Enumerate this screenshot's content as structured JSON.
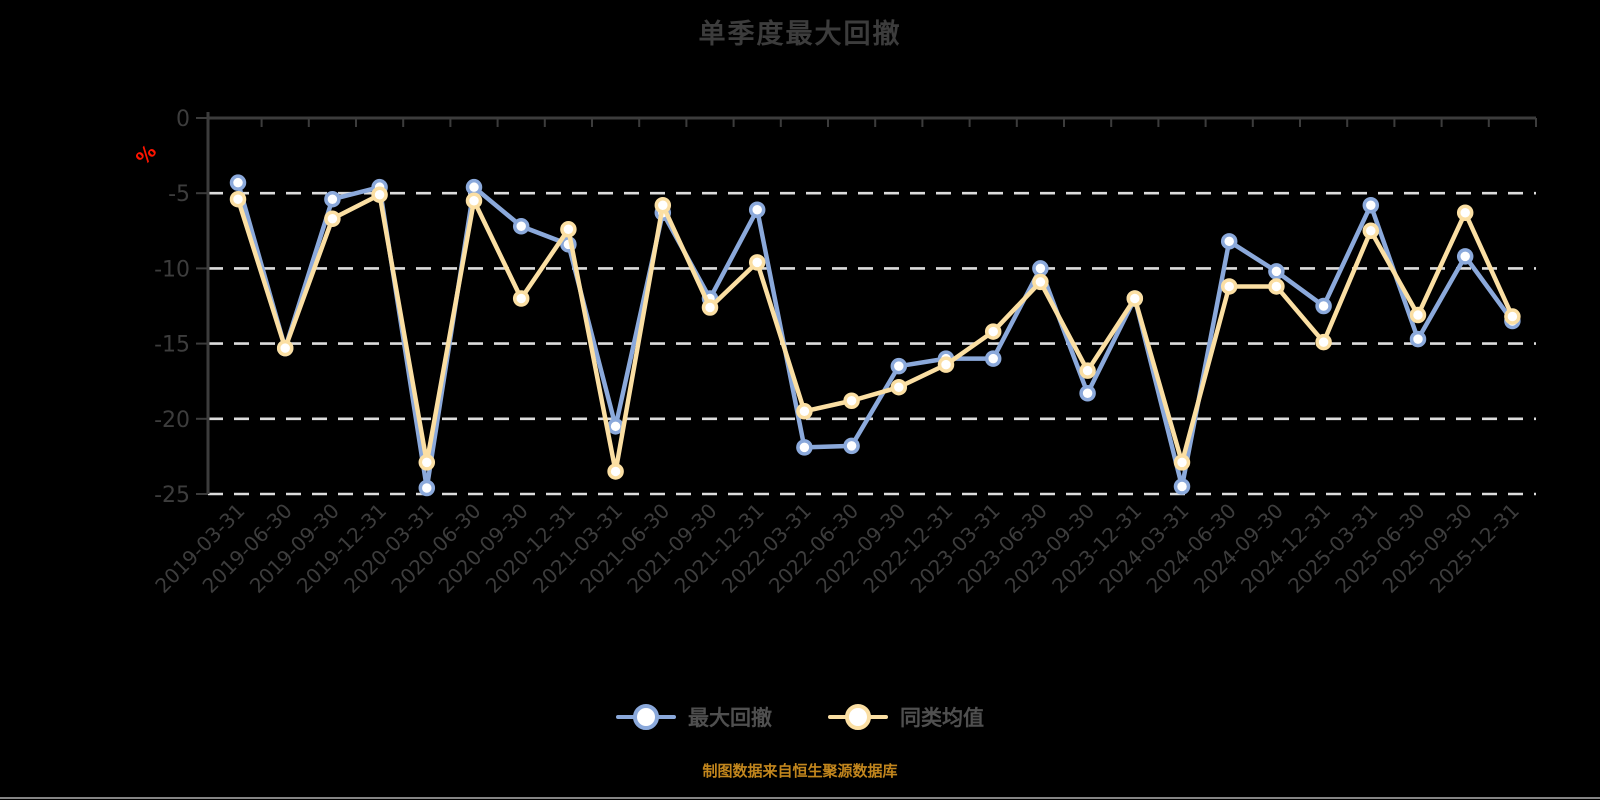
{
  "title": "单季度最大回撤",
  "caption": "制图数据来自恒生聚源数据库",
  "y_axis_unit": "%",
  "colors": {
    "background": "#000000",
    "axis": "#3c3c3c",
    "tick_label": "#3d3d3d",
    "gridline": "#dcdcdc",
    "unit_label": "#ff1400",
    "title_text": "#3c3c3c",
    "legend_text": "#4f4f4f",
    "caption_text": "#c2861d",
    "marker_fill": "#ffffff"
  },
  "chart_data": {
    "type": "line",
    "title": "单季度最大回撤",
    "ylabel": "%",
    "ylim": [
      -25,
      0
    ],
    "yticks": [
      0,
      -5,
      -10,
      -15,
      -20,
      -25
    ],
    "grid": "horizontal-dashed",
    "legend_position": "bottom",
    "x_tick_label_rotation": 45,
    "categories": [
      "2019-03-31",
      "2019-06-30",
      "2019-09-30",
      "2019-12-31",
      "2020-03-31",
      "2020-06-30",
      "2020-09-30",
      "2020-12-31",
      "2021-03-31",
      "2021-06-30",
      "2021-09-30",
      "2021-12-31",
      "2022-03-31",
      "2022-06-30",
      "2022-09-30",
      "2022-12-31",
      "2023-03-31",
      "2023-06-30",
      "2023-09-30",
      "2023-12-31",
      "2024-03-31",
      "2024-06-30",
      "2024-09-30",
      "2024-12-31",
      "2025-03-31",
      "2025-06-30",
      "2025-09-30",
      "2025-12-31"
    ],
    "series": [
      {
        "name": "最大回撤",
        "color": "#8ba9db",
        "values": [
          -4.3,
          -15.3,
          -5.4,
          -4.6,
          -24.6,
          -4.6,
          -7.2,
          -8.4,
          -20.5,
          -6.3,
          -12.0,
          -6.1,
          -21.9,
          -21.8,
          -16.5,
          -16.0,
          -16.0,
          -10.0,
          -18.3,
          -12.0,
          -24.5,
          -8.2,
          -10.2,
          -12.5,
          -5.8,
          -14.7,
          -9.2,
          -13.5
        ]
      },
      {
        "name": "同类均值",
        "color": "#fbdfa3",
        "values": [
          -5.4,
          -15.3,
          -6.7,
          -5.1,
          -22.9,
          -5.5,
          -12.0,
          -7.4,
          -23.5,
          -5.8,
          -12.6,
          -9.6,
          -19.5,
          -18.8,
          -17.9,
          -16.4,
          -14.2,
          -10.9,
          -16.8,
          -12.0,
          -22.9,
          -11.2,
          -11.2,
          -14.9,
          -7.5,
          -13.1,
          -6.3,
          -13.2
        ]
      }
    ]
  }
}
